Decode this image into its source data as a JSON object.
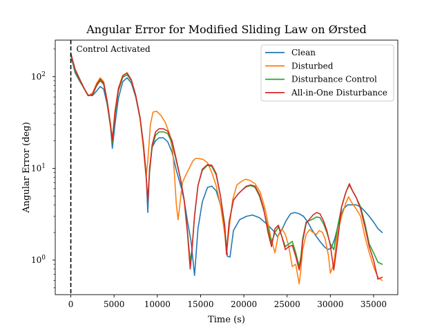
{
  "chart_data": {
    "type": "line",
    "title": "Angular Error for Modified Sliding Law on Ørsted",
    "xlabel": "Time (s)",
    "ylabel": "Angular Error (deg)",
    "xlim": [
      -1800,
      37800
    ],
    "ylim": [
      0.42,
      250
    ],
    "yscale": "log",
    "grid": false,
    "legend_position": "top-right",
    "x_ticks": [
      0,
      5000,
      10000,
      15000,
      20000,
      25000,
      30000,
      35000
    ],
    "x_tick_labels": [
      "0",
      "5000",
      "10000",
      "15000",
      "20000",
      "25000",
      "30000",
      "35000"
    ],
    "y_ticks": [
      1,
      10,
      100
    ],
    "y_tick_labels": [
      "10^0",
      "10^1",
      "10^2"
    ],
    "annotation": {
      "text": "Control Activated",
      "x": 0,
      "y": 180,
      "line_style": "dashed",
      "color": "#000000"
    },
    "series": [
      {
        "name": "Clean",
        "color": "#1f77b4",
        "x": [
          0,
          500,
          1000,
          1500,
          2000,
          2500,
          3000,
          3400,
          3800,
          4200,
          4600,
          4800,
          5100,
          5500,
          6000,
          6500,
          7000,
          7500,
          8000,
          8400,
          8700,
          8900,
          9100,
          9400,
          9800,
          10200,
          10700,
          11200,
          11700,
          12200,
          12700,
          13100,
          13500,
          13900,
          14300,
          14700,
          15200,
          15800,
          16300,
          16800,
          17300,
          17800,
          18100,
          18400,
          18800,
          19500,
          20300,
          21000,
          21800,
          22600,
          23400,
          23900,
          24400,
          24900,
          25400,
          25900,
          26400,
          26900,
          27400,
          27800,
          28300,
          28800,
          29300,
          29700,
          30100,
          30500,
          31000,
          31500,
          32000,
          32500,
          33000,
          33500,
          34000,
          34500,
          35000,
          35500,
          36000
        ],
        "y": [
          170,
          110,
          90,
          75,
          63,
          62,
          70,
          78,
          73,
          50,
          28,
          16.5,
          30,
          58,
          88,
          97,
          85,
          60,
          35,
          18,
          9,
          3.3,
          10,
          17,
          20,
          21.5,
          21.5,
          19.5,
          15,
          9.5,
          6.5,
          4.5,
          2.6,
          1.6,
          0.68,
          2.2,
          4.3,
          6.2,
          6.4,
          5.7,
          4.0,
          2.2,
          1.1,
          1.08,
          2.1,
          2.75,
          3.0,
          3.1,
          2.9,
          2.5,
          2.1,
          1.8,
          2.15,
          2.7,
          3.2,
          3.3,
          3.2,
          3.0,
          2.6,
          2.2,
          1.85,
          1.6,
          1.4,
          1.3,
          1.35,
          1.7,
          2.6,
          3.6,
          4.0,
          4.0,
          4.0,
          3.8,
          3.4,
          3.0,
          2.6,
          2.2,
          2.0
        ]
      },
      {
        "name": "Disturbed",
        "color": "#ff7f0e",
        "x": [
          0,
          500,
          1000,
          1500,
          2000,
          2500,
          3000,
          3400,
          3800,
          4200,
          4600,
          4800,
          5100,
          5500,
          6000,
          6500,
          7000,
          7500,
          8000,
          8400,
          8700,
          8900,
          9200,
          9500,
          9900,
          10400,
          10900,
          11400,
          11800,
          12000,
          12200,
          12400,
          12600,
          12900,
          13300,
          13800,
          14100,
          14400,
          14800,
          15300,
          15800,
          16300,
          16800,
          17300,
          17800,
          18000,
          18300,
          18700,
          19200,
          19700,
          20200,
          20700,
          21300,
          21900,
          22500,
          23100,
          23600,
          24000,
          24400,
          24800,
          25200,
          25600,
          26000,
          26400,
          26600,
          26800,
          27200,
          27600,
          28000,
          28400,
          28700,
          29100,
          29400,
          29800,
          30000,
          30400,
          30800,
          31300,
          31800,
          32100,
          32500,
          33000,
          33500,
          34000,
          34500,
          35000,
          35500,
          36000
        ],
        "y": [
          175,
          120,
          95,
          75,
          62,
          66,
          85,
          97,
          88,
          55,
          30,
          21,
          42,
          75,
          103,
          110,
          92,
          62,
          35,
          16,
          8,
          12,
          30,
          41,
          42,
          38,
          32,
          24,
          15,
          8,
          4,
          2.75,
          4,
          7,
          8.5,
          10.5,
          12,
          12.8,
          12.8,
          12.5,
          11.5,
          9,
          6.5,
          4,
          1.9,
          1.2,
          2.2,
          4.5,
          6.6,
          7.2,
          7.6,
          7.4,
          6.8,
          5.5,
          3.5,
          1.8,
          1.2,
          1.9,
          2.2,
          1.9,
          1.4,
          0.85,
          0.9,
          0.55,
          0.8,
          1.3,
          1.9,
          2.15,
          2.0,
          1.9,
          2.1,
          2.0,
          1.7,
          1.1,
          0.72,
          0.9,
          1.9,
          3.0,
          4.2,
          4.9,
          4.2,
          3.6,
          3.0,
          1.8,
          1.2,
          0.85,
          0.65,
          0.6
        ]
      },
      {
        "name": "Disturbance Control",
        "color": "#2ca02c",
        "x": [
          0,
          500,
          1000,
          1500,
          2000,
          2500,
          3000,
          3400,
          3800,
          4200,
          4600,
          4800,
          5100,
          5500,
          6000,
          6500,
          7000,
          7500,
          8000,
          8400,
          8700,
          8900,
          9100,
          9400,
          9800,
          10200,
          10700,
          11200,
          11700,
          12200,
          12700,
          13100,
          13500,
          13800,
          14000,
          14300,
          14700,
          15200,
          15800,
          16300,
          16800,
          17300,
          17800,
          18000,
          18300,
          18800,
          19300,
          19800,
          20300,
          20800,
          21300,
          21800,
          22300,
          22800,
          23200,
          23600,
          24000,
          24400,
          24800,
          25200,
          25600,
          26000,
          26400,
          26600,
          26800,
          27200,
          27600,
          28000,
          28400,
          28800,
          29200,
          29600,
          30000,
          30400,
          30800,
          31300,
          31800,
          32200,
          32600,
          33000,
          33500,
          34000,
          34500,
          35000,
          35500,
          36000
        ],
        "y": [
          170,
          115,
          92,
          75,
          62,
          63,
          80,
          90,
          82,
          52,
          28,
          19,
          38,
          70,
          98,
          105,
          90,
          62,
          36,
          18,
          8.5,
          4.5,
          9,
          17,
          23,
          25,
          25,
          24,
          19,
          12,
          7.5,
          4.6,
          2.0,
          0.95,
          1.3,
          3.0,
          6.5,
          9.5,
          10.8,
          10.5,
          8.5,
          5,
          2.4,
          1.2,
          2.6,
          4.5,
          5.2,
          5.8,
          6.3,
          6.5,
          6.2,
          5.0,
          3.5,
          2.2,
          1.55,
          2.0,
          2.3,
          1.8,
          1.4,
          1.5,
          1.6,
          1.2,
          0.85,
          1.1,
          1.7,
          2.6,
          2.7,
          2.8,
          2.95,
          2.9,
          2.5,
          2.0,
          1.5,
          1.3,
          2.2,
          3.8,
          5.5,
          6.6,
          5.6,
          4.8,
          3.8,
          2.5,
          1.5,
          1.2,
          0.95,
          0.9
        ]
      },
      {
        "name": "All-in-One Disturbance",
        "color": "#d62728",
        "x": [
          0,
          500,
          1000,
          1500,
          2000,
          2500,
          3000,
          3400,
          3800,
          4200,
          4600,
          4800,
          5100,
          5500,
          6000,
          6500,
          7000,
          7500,
          8000,
          8400,
          8700,
          8900,
          9100,
          9400,
          9800,
          10200,
          10700,
          11200,
          11700,
          12200,
          12700,
          13100,
          13500,
          13800,
          14000,
          14300,
          14700,
          15200,
          15800,
          16300,
          16800,
          17300,
          17800,
          18000,
          18300,
          18800,
          19300,
          19800,
          20300,
          20800,
          21300,
          21800,
          22300,
          22800,
          23200,
          23600,
          24000,
          24400,
          24800,
          25200,
          25600,
          26000,
          26400,
          26600,
          26800,
          27200,
          27600,
          28000,
          28400,
          28800,
          29200,
          29600,
          30000,
          30400,
          30800,
          31300,
          31800,
          32200,
          32600,
          33000,
          33500,
          34000,
          34500,
          35000,
          35500,
          36000
        ],
        "y": [
          180,
          120,
          95,
          76,
          62,
          64,
          82,
          94,
          85,
          54,
          29,
          20,
          40,
          73,
          102,
          110,
          92,
          63,
          36,
          18,
          8.3,
          4.4,
          9.5,
          18,
          25,
          27,
          27,
          25.5,
          20,
          12.5,
          7.5,
          4.5,
          1.9,
          0.8,
          1.25,
          3.0,
          6.5,
          9.8,
          11.0,
          10.8,
          8.8,
          5,
          2.3,
          1.15,
          2.6,
          4.5,
          5.2,
          5.8,
          6.4,
          6.6,
          6.4,
          5.2,
          3.6,
          2.0,
          1.4,
          2.2,
          2.4,
          1.8,
          1.3,
          1.4,
          1.45,
          1.1,
          0.78,
          1.0,
          1.6,
          2.5,
          2.8,
          3.1,
          3.3,
          3.2,
          2.7,
          2.1,
          1.45,
          0.78,
          1.5,
          3.8,
          5.5,
          6.8,
          5.6,
          4.8,
          3.6,
          2.3,
          1.4,
          1.0,
          0.62,
          0.65
        ]
      }
    ]
  }
}
